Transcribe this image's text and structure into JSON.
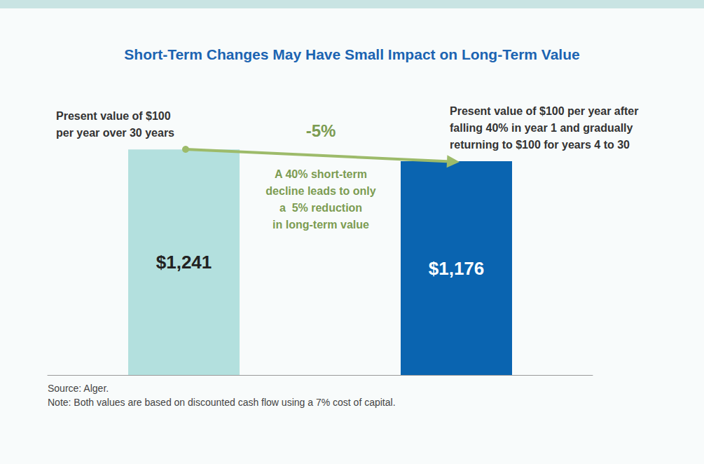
{
  "chart_data": {
    "type": "bar",
    "title": "Short-Term Changes May Have Small Impact on Long-Term Value",
    "categories": [
      null,
      null
    ],
    "values": [
      1241,
      1176
    ],
    "value_labels": [
      "$1,241",
      "$1,176"
    ],
    "colors": [
      "#b3e0de",
      "#0a64b0"
    ],
    "ylim": [
      0,
      1400
    ],
    "data_labels": true,
    "tick_labels": false,
    "grid": false,
    "annotations": [
      "Present value of $100\nper year over 30 years",
      "Present value of $100 per year after\nfalling 40% in year 1 and gradually\nreturning to $100 for years 4 to 30",
      "-5%",
      "A 40% short-term\ndecline leads to only\na  5% reduction\nin long-term value"
    ],
    "source": "Source: Alger.",
    "note": "Note: Both values are based on discounted cash flow using a 7% cost of capital."
  }
}
